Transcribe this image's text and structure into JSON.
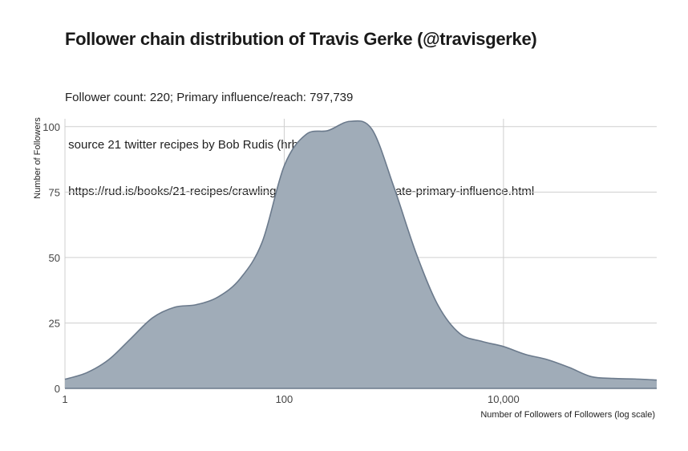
{
  "chart_data": {
    "type": "area",
    "title": "Follower chain distribution of Travis Gerke (@travisgerke)",
    "subtitle": [
      "Follower count: 220; Primary influence/reach: 797,739",
      " source 21 twitter recipes by Bob Rudis (hrbrmstr)",
      " https://rud.is/books/21-recipes/crawling-followers-to-approximate-primary-influence.html"
    ],
    "xlabel": "Number of Followers of Followers (log scale)",
    "ylabel": "Number of Followers",
    "x_scale": "log10",
    "xlim": [
      1,
      250000
    ],
    "ylim": [
      0,
      103
    ],
    "x_ticks": [
      1,
      100,
      10000
    ],
    "x_tick_labels": [
      "1",
      "100",
      "10,000"
    ],
    "y_ticks": [
      0,
      25,
      50,
      75,
      100
    ],
    "y_tick_labels": [
      "0",
      "25",
      "50",
      "75",
      "100"
    ],
    "grid": true,
    "fill_color": "#a0acb8",
    "line_color": "#6b7a8c",
    "x": [
      1,
      1.58,
      2.51,
      3.98,
      6.31,
      10,
      15.8,
      25.1,
      39.8,
      63.1,
      100,
      158,
      251,
      398,
      631,
      1000,
      1585,
      2512,
      3981,
      6310,
      10000,
      15850,
      25120,
      39810,
      63100,
      100000,
      158500,
      250000
    ],
    "values": [
      3.5,
      6,
      11,
      19,
      27,
      31,
      32,
      35,
      42,
      56,
      85,
      97,
      98.5,
      102,
      99,
      77,
      52,
      32,
      21,
      18,
      16,
      13,
      11,
      8,
      4.5,
      3.8,
      3.6,
      3.2
    ]
  }
}
